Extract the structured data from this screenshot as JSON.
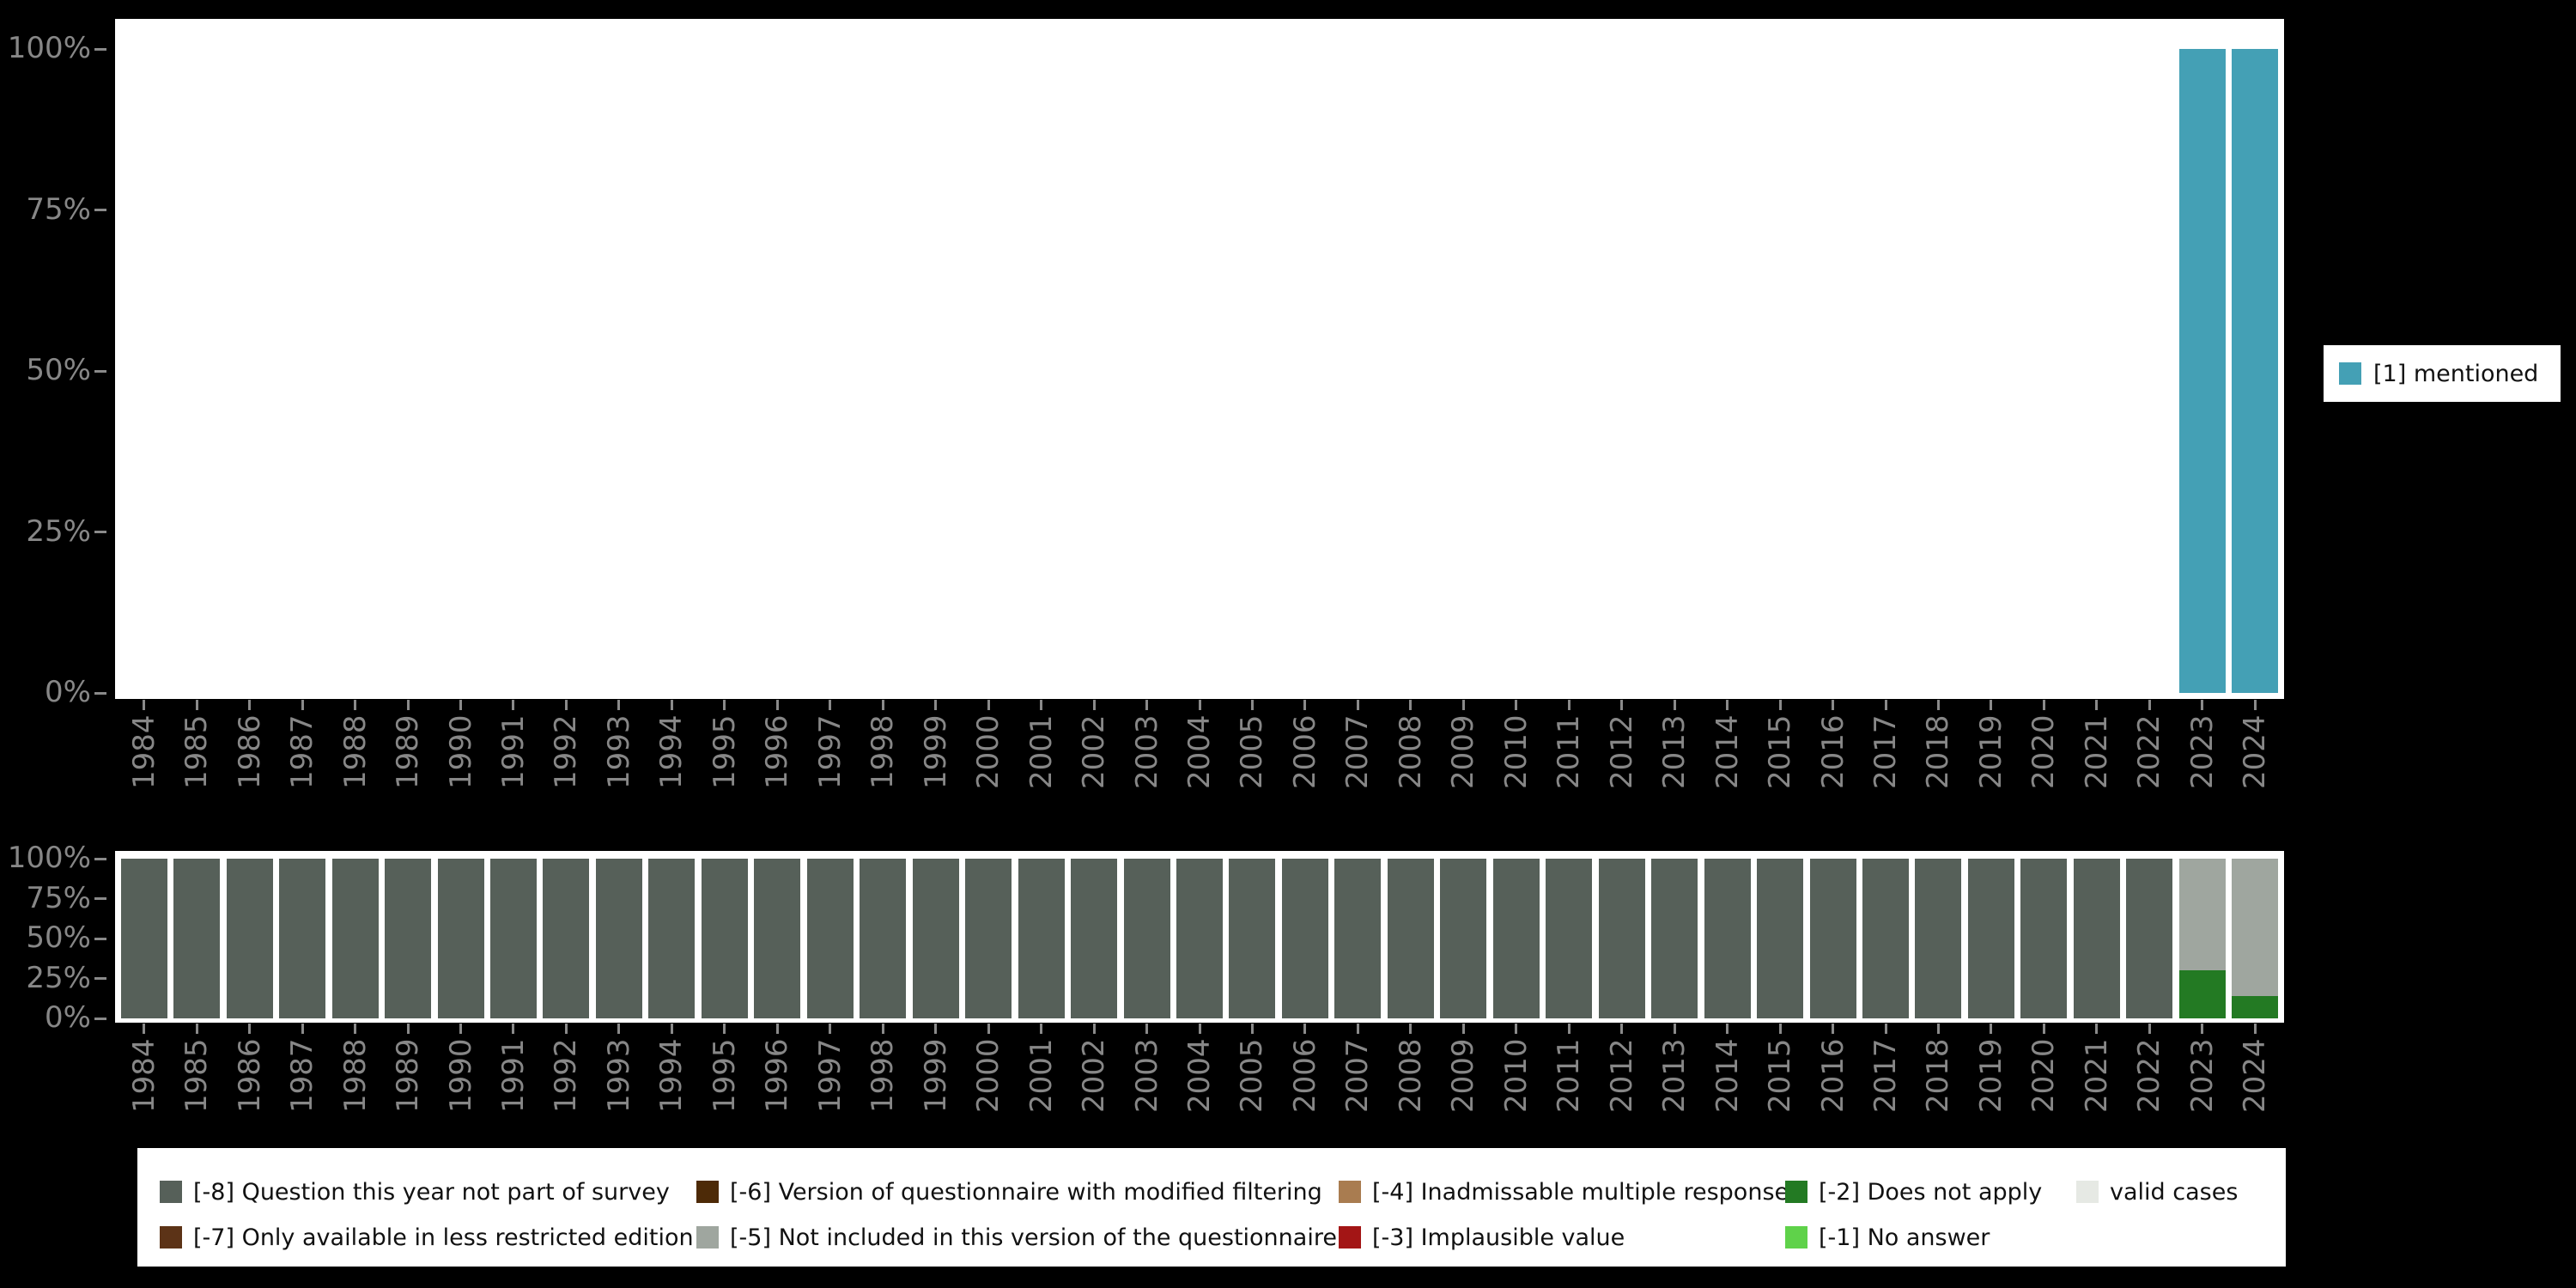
{
  "colors": {
    "background": "#000000",
    "panel": "#ffffff",
    "axis_text": "#878787",
    "tick": "#8a8a8a",
    "legend_text": "#111111",
    "mentioned": "#44a0b5",
    "missing_8": "#566059",
    "missing_7": "#5c3317",
    "missing_6": "#4d2a07",
    "missing_5": "#9fa69f",
    "missing_4": "#a97c50",
    "missing_3": "#a31515",
    "missing_2": "#237a23",
    "missing_1": "#5fd24a",
    "valid": "#e6e9e4"
  },
  "chart_data": [
    {
      "type": "bar",
      "title": "",
      "xlabel": "",
      "ylabel": "",
      "ylim": [
        0,
        100
      ],
      "grid": false,
      "y_ticks": [
        "100%",
        "75%",
        "50%",
        "25%",
        "0%"
      ],
      "categories": [
        "1984",
        "1985",
        "1986",
        "1987",
        "1988",
        "1989",
        "1990",
        "1991",
        "1992",
        "1993",
        "1994",
        "1995",
        "1996",
        "1997",
        "1998",
        "1999",
        "2000",
        "2001",
        "2002",
        "2003",
        "2004",
        "2005",
        "2006",
        "2007",
        "2008",
        "2009",
        "2010",
        "2011",
        "2012",
        "2013",
        "2014",
        "2015",
        "2016",
        "2017",
        "2018",
        "2019",
        "2020",
        "2021",
        "2022",
        "2023",
        "2024"
      ],
      "series": [
        {
          "name": "[1] mentioned",
          "color_key": "mentioned",
          "default": 0,
          "values_by_year": {
            "2023": 100,
            "2024": 100
          }
        }
      ],
      "legend": {
        "position": "right",
        "items": [
          {
            "label": "[1] mentioned",
            "color_key": "mentioned"
          }
        ]
      }
    },
    {
      "type": "stacked_bar",
      "title": "",
      "xlabel": "",
      "ylabel": "",
      "ylim": [
        0,
        100
      ],
      "grid": false,
      "y_ticks": [
        "100%",
        "75%",
        "50%",
        "25%",
        "0%"
      ],
      "categories": [
        "1984",
        "1985",
        "1986",
        "1987",
        "1988",
        "1989",
        "1990",
        "1991",
        "1992",
        "1993",
        "1994",
        "1995",
        "1996",
        "1997",
        "1998",
        "1999",
        "2000",
        "2001",
        "2002",
        "2003",
        "2004",
        "2005",
        "2006",
        "2007",
        "2008",
        "2009",
        "2010",
        "2011",
        "2012",
        "2013",
        "2014",
        "2015",
        "2016",
        "2017",
        "2018",
        "2019",
        "2020",
        "2021",
        "2022",
        "2023",
        "2024"
      ],
      "series": [
        {
          "name": "[-8] Question this year not part of survey",
          "color_key": "missing_8",
          "default": 100,
          "values_by_year": {
            "2023": 0,
            "2024": 0
          }
        },
        {
          "name": "[-5] Not included in this version of the questionnaire",
          "color_key": "missing_5",
          "default": 0,
          "values_by_year": {
            "2023": 70,
            "2024": 86
          }
        },
        {
          "name": "[-2] Does not apply",
          "color_key": "missing_2",
          "default": 0,
          "values_by_year": {
            "2023": 30,
            "2024": 14
          }
        }
      ],
      "legend": {
        "position": "bottom"
      }
    }
  ],
  "legend_bottom": {
    "columns": [
      [
        {
          "label": "[-8] Question this year not part of survey",
          "color_key": "missing_8"
        },
        {
          "label": "[-7] Only available in less restricted edition",
          "color_key": "missing_7"
        }
      ],
      [
        {
          "label": "[-6] Version of questionnaire with modified filtering",
          "color_key": "missing_6"
        },
        {
          "label": "[-5] Not included in this version of the questionnaire",
          "color_key": "missing_5"
        }
      ],
      [
        {
          "label": "[-4] Inadmissable multiple response",
          "color_key": "missing_4"
        },
        {
          "label": "[-3] Implausible value",
          "color_key": "missing_3"
        }
      ],
      [
        {
          "label": "[-2] Does not apply",
          "color_key": "missing_2"
        },
        {
          "label": "[-1] No answer",
          "color_key": "missing_1"
        }
      ],
      [
        {
          "label": "valid cases",
          "color_key": "valid"
        }
      ]
    ]
  }
}
